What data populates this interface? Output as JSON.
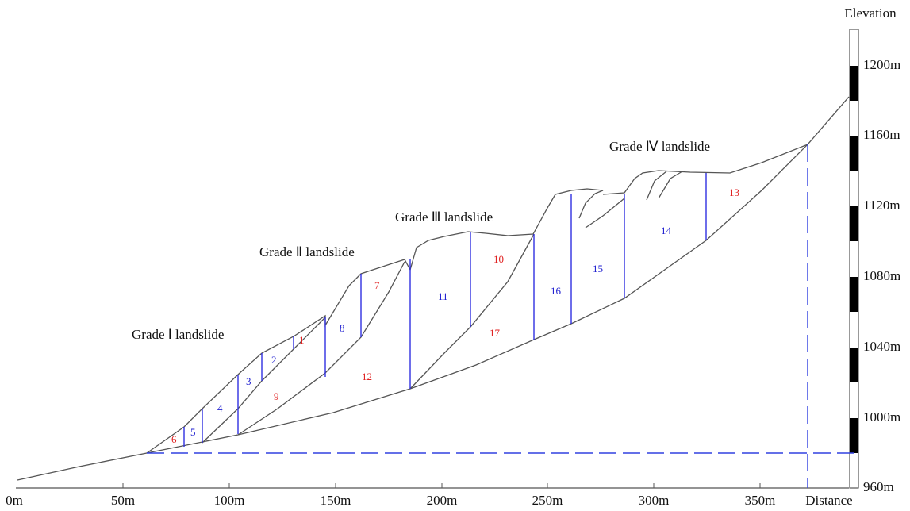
{
  "axis": {
    "x_labels": [
      "0m",
      "50m",
      "100m",
      "150m",
      "200m",
      "250m",
      "300m",
      "350m"
    ],
    "x_title": "Distance",
    "y_title": "Elevation",
    "y_labels": [
      "1200m",
      "1160m",
      "1120m",
      "1080m",
      "1040m",
      "1000m",
      "960m"
    ]
  },
  "landslides": [
    "Grade Ⅰ landslide",
    "Grade Ⅱ landslide",
    "Grade Ⅲ landslide",
    "Grade Ⅳ landslide"
  ],
  "blocks": [
    "1",
    "2",
    "3",
    "4",
    "5",
    "6",
    "7",
    "8",
    "9",
    "10",
    "11",
    "12",
    "13",
    "14",
    "15",
    "16",
    "17"
  ]
}
